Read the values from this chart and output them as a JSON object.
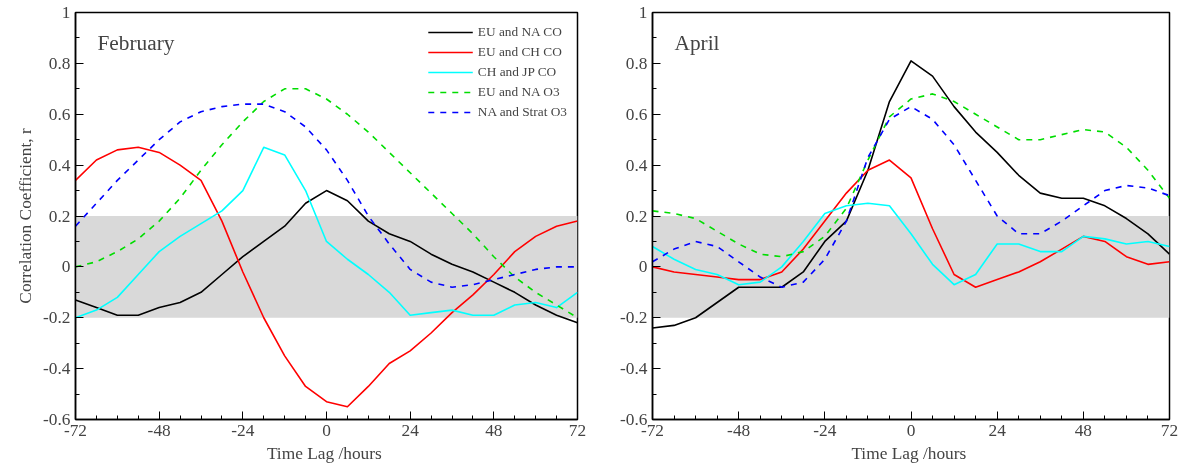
{
  "chart_data": [
    {
      "type": "line",
      "title": "February",
      "xlabel": "Time Lag  /hours",
      "ylabel": "Correlation Coefficient, r",
      "x": [
        -72,
        -66,
        -60,
        -54,
        -48,
        -42,
        -36,
        -30,
        -24,
        -18,
        -12,
        -6,
        0,
        6,
        12,
        18,
        24,
        30,
        36,
        42,
        48,
        54,
        60,
        66,
        72
      ],
      "xlim": [
        -72,
        72
      ],
      "xticks": [
        -72,
        -48,
        -24,
        0,
        24,
        48,
        72
      ],
      "ylim": [
        -0.6,
        1
      ],
      "yticks": [
        -0.6,
        -0.4,
        -0.2,
        0,
        0.2,
        0.4,
        0.6,
        0.8,
        1
      ],
      "bands": [
        {
          "axis": "y",
          "from": -0.2,
          "to": 0.2,
          "color": "#d9d9d9"
        }
      ],
      "legend": "top right",
      "series": [
        {
          "name": "EU and NA CO",
          "color": "#000000",
          "line_style": "solid",
          "values": [
            -0.13,
            -0.16,
            -0.19,
            -0.19,
            -0.16,
            -0.14,
            -0.1,
            -0.03,
            0.04,
            0.1,
            0.16,
            0.25,
            0.3,
            0.26,
            0.18,
            0.13,
            0.1,
            0.05,
            0.01,
            -0.02,
            -0.06,
            -0.1,
            -0.15,
            -0.19,
            -0.22
          ]
        },
        {
          "name": "EU and CH CO",
          "color": "#ff0000",
          "line_style": "solid",
          "values": [
            0.34,
            0.42,
            0.46,
            0.47,
            0.45,
            0.4,
            0.34,
            0.18,
            -0.02,
            -0.2,
            -0.35,
            -0.47,
            -0.53,
            -0.55,
            -0.47,
            -0.38,
            -0.33,
            -0.26,
            -0.18,
            -0.11,
            -0.03,
            0.06,
            0.12,
            0.16,
            0.18
          ]
        },
        {
          "name": "CH and JP CO",
          "color": "#00ffff",
          "line_style": "solid",
          "values": [
            -0.2,
            -0.17,
            -0.12,
            -0.03,
            0.06,
            0.12,
            0.17,
            0.22,
            0.3,
            0.47,
            0.44,
            0.3,
            0.1,
            0.03,
            -0.03,
            -0.1,
            -0.19,
            -0.18,
            -0.17,
            -0.19,
            -0.19,
            -0.15,
            -0.14,
            -0.16,
            -0.1
          ]
        },
        {
          "name": "EU and NA O3",
          "color": "#00dd00",
          "line_style": "dashed",
          "values": [
            0.0,
            0.02,
            0.06,
            0.11,
            0.18,
            0.27,
            0.38,
            0.48,
            0.57,
            0.65,
            0.7,
            0.7,
            0.66,
            0.6,
            0.53,
            0.45,
            0.37,
            0.29,
            0.21,
            0.13,
            0.04,
            -0.04,
            -0.1,
            -0.15,
            -0.2
          ]
        },
        {
          "name": "NA and Strat O3",
          "color": "#0000ff",
          "line_style": "dashed",
          "values": [
            0.16,
            0.25,
            0.34,
            0.42,
            0.5,
            0.57,
            0.61,
            0.63,
            0.64,
            0.64,
            0.61,
            0.55,
            0.46,
            0.34,
            0.2,
            0.09,
            -0.01,
            -0.06,
            -0.08,
            -0.07,
            -0.05,
            -0.03,
            -0.01,
            0.0,
            0.0
          ]
        }
      ]
    },
    {
      "type": "line",
      "title": "April",
      "xlabel": "Time Lag  /hours",
      "x": [
        -72,
        -66,
        -60,
        -54,
        -48,
        -42,
        -36,
        -30,
        -24,
        -18,
        -12,
        -6,
        0,
        6,
        12,
        18,
        24,
        30,
        36,
        42,
        48,
        54,
        60,
        66,
        72
      ],
      "xlim": [
        -72,
        72
      ],
      "xticks": [
        -72,
        -48,
        -24,
        0,
        24,
        48,
        72
      ],
      "ylim": [
        -0.6,
        1
      ],
      "yticks": [
        -0.6,
        -0.4,
        -0.2,
        0,
        0.2,
        0.4,
        0.6,
        0.8,
        1
      ],
      "bands": [
        {
          "axis": "y",
          "from": -0.2,
          "to": 0.2,
          "color": "#d9d9d9"
        }
      ],
      "series": [
        {
          "color": "#000000",
          "line_style": "solid",
          "values": [
            -0.24,
            -0.23,
            -0.2,
            -0.14,
            -0.08,
            -0.08,
            -0.08,
            -0.02,
            0.1,
            0.18,
            0.38,
            0.65,
            0.81,
            0.75,
            0.63,
            0.53,
            0.45,
            0.36,
            0.29,
            0.27,
            0.27,
            0.24,
            0.19,
            0.13,
            0.05
          ]
        },
        {
          "color": "#ff0000",
          "line_style": "solid",
          "values": [
            0.0,
            -0.02,
            -0.03,
            -0.04,
            -0.05,
            -0.05,
            -0.02,
            0.07,
            0.18,
            0.29,
            0.38,
            0.42,
            0.35,
            0.15,
            -0.03,
            -0.08,
            -0.05,
            -0.02,
            0.02,
            0.07,
            0.12,
            0.1,
            0.04,
            0.01,
            0.02
          ]
        },
        {
          "color": "#00ffff",
          "line_style": "solid",
          "values": [
            0.08,
            0.03,
            -0.01,
            -0.03,
            -0.07,
            -0.06,
            0.0,
            0.1,
            0.21,
            0.24,
            0.25,
            0.24,
            0.13,
            0.01,
            -0.07,
            -0.03,
            0.09,
            0.09,
            0.06,
            0.06,
            0.12,
            0.11,
            0.09,
            0.1,
            0.08
          ]
        },
        {
          "color": "#00dd00",
          "line_style": "dashed",
          "values": [
            0.22,
            0.21,
            0.19,
            0.14,
            0.09,
            0.05,
            0.04,
            0.06,
            0.12,
            0.23,
            0.42,
            0.59,
            0.66,
            0.68,
            0.65,
            0.6,
            0.55,
            0.5,
            0.5,
            0.52,
            0.54,
            0.53,
            0.47,
            0.38,
            0.27
          ]
        },
        {
          "color": "#0000ff",
          "line_style": "dashed",
          "values": [
            0.02,
            0.07,
            0.1,
            0.08,
            0.02,
            -0.04,
            -0.08,
            -0.06,
            0.03,
            0.18,
            0.43,
            0.58,
            0.63,
            0.58,
            0.48,
            0.34,
            0.2,
            0.13,
            0.13,
            0.18,
            0.24,
            0.3,
            0.32,
            0.31,
            0.28
          ]
        }
      ]
    }
  ]
}
